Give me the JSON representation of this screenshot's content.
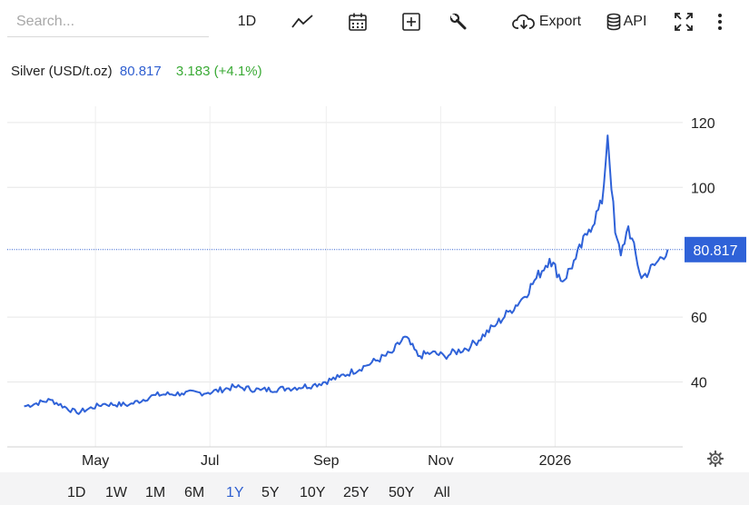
{
  "search": {
    "placeholder": "Search..."
  },
  "toolbar": {
    "interval_label": "1D",
    "export_label": "Export",
    "api_label": "API",
    "icons": [
      "line-chart-icon",
      "calendar-icon",
      "plus-square-icon",
      "wrench-icon",
      "cloud-download-icon",
      "database-icon",
      "fullscreen-icon",
      "more-vertical-icon"
    ]
  },
  "quote": {
    "name": "Silver (USD/t.oz)",
    "price": "80.817",
    "change": "3.183 (+4.1%)",
    "price_color": "#2f5fd0",
    "change_color": "#3aaa35"
  },
  "ranges": {
    "items": [
      "1D",
      "1W",
      "1M",
      "6M",
      "1Y",
      "5Y",
      "10Y",
      "25Y",
      "50Y",
      "All"
    ],
    "active": "1Y"
  },
  "chart_data": {
    "type": "line",
    "series": [
      {
        "color": "#2f62d8",
        "x": [
          "2025-03-24",
          "2025-04-07",
          "2025-04-21",
          "2025-05-05",
          "2025-05-19",
          "2025-06-02",
          "2025-06-16",
          "2025-06-30",
          "2025-07-14",
          "2025-07-28",
          "2025-08-11",
          "2025-08-25",
          "2025-09-08",
          "2025-09-22",
          "2025-10-06",
          "2025-10-13",
          "2025-10-20",
          "2025-10-27",
          "2025-11-03",
          "2025-11-17",
          "2025-12-01",
          "2025-12-08",
          "2025-12-15",
          "2025-12-22",
          "2025-12-29",
          "2026-01-05",
          "2026-01-12",
          "2026-01-19",
          "2026-01-26",
          "2026-01-29",
          "2026-02-02",
          "2026-02-05",
          "2026-02-09",
          "2026-02-16",
          "2026-02-23",
          "2026-03-02"
        ],
        "y": [
          32.5,
          34.5,
          30.5,
          33.2,
          33.0,
          36.0,
          36.5,
          36.7,
          38.5,
          37.5,
          38.0,
          39.0,
          41.5,
          45.0,
          49.0,
          54.0,
          48.0,
          49.0,
          48.0,
          51.0,
          58.0,
          62.0,
          66.0,
          72.0,
          78.0,
          71.0,
          78.0,
          87.0,
          95.0,
          116.0,
          86.0,
          79.0,
          88.0,
          72.0,
          76.0,
          80.817
        ]
      }
    ],
    "x_ticks": [
      "May",
      "Jul",
      "Sep",
      "Nov",
      "2026"
    ],
    "y_ticks": [
      40,
      60,
      100,
      120
    ],
    "ylim": [
      20,
      125
    ],
    "last_value_label": "80.817",
    "grid": true,
    "settings_icon": "gear-icon"
  }
}
